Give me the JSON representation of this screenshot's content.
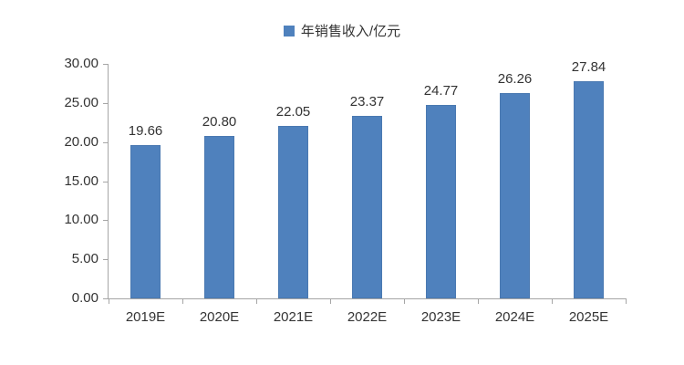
{
  "legend": {
    "label": "年销售收入/亿元"
  },
  "chart_data": {
    "type": "bar",
    "title": "",
    "xlabel": "",
    "ylabel": "",
    "series_name": "年销售收入/亿元",
    "categories": [
      "2019E",
      "2020E",
      "2021E",
      "2022E",
      "2023E",
      "2024E",
      "2025E"
    ],
    "values": [
      19.66,
      20.8,
      22.05,
      23.37,
      24.77,
      26.26,
      27.84
    ],
    "ylim": [
      0,
      30
    ],
    "ytick_step": 5,
    "ytick_labels": [
      "0.00",
      "5.00",
      "10.00",
      "15.00",
      "20.00",
      "25.00",
      "30.00"
    ],
    "value_label_decimals": 2,
    "grid": false,
    "legend_position": "top-center",
    "data_labels_shown": true
  },
  "colors": {
    "bar": "#4f81bd",
    "axis": "#a6a6a6",
    "text": "#333333",
    "background": "#ffffff"
  }
}
